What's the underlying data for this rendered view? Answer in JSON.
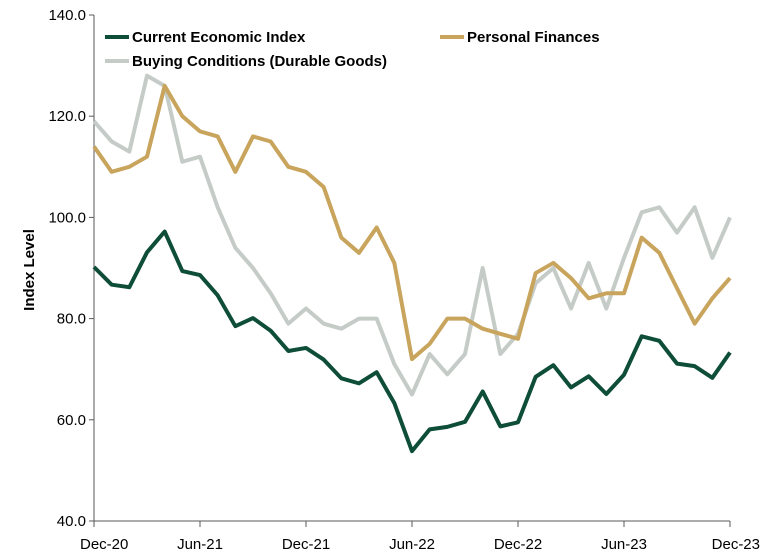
{
  "chart_data": {
    "type": "line",
    "ylabel": "Index Level",
    "ylim": [
      40,
      140
    ],
    "yticks": [
      "40.0",
      "60.0",
      "80.0",
      "100.0",
      "120.0",
      "140.0"
    ],
    "xlim": [
      0,
      36
    ],
    "xticks": [
      {
        "x": 0,
        "label": "Dec-20"
      },
      {
        "x": 6,
        "label": "Jun-21"
      },
      {
        "x": 12,
        "label": "Dec-21"
      },
      {
        "x": 18,
        "label": "Jun-22"
      },
      {
        "x": 24,
        "label": "Dec-22"
      },
      {
        "x": 30,
        "label": "Jun-23"
      },
      {
        "x": 36,
        "label": "Dec-23"
      }
    ],
    "legend_placement": "top",
    "series": [
      {
        "name": "Buying Conditions (Durable Goods)",
        "color": "#c5ccc8",
        "values": [
          119,
          115,
          113,
          128,
          126,
          111,
          112,
          102,
          94,
          90,
          85,
          79,
          82,
          79,
          78,
          80,
          80,
          71,
          65,
          73,
          69,
          73,
          90,
          73,
          77,
          87,
          90,
          82,
          91,
          82,
          92,
          101,
          102,
          97,
          102,
          92,
          100
        ]
      },
      {
        "name": "Personal Finances",
        "color": "#c8a45c",
        "values": [
          114,
          109,
          110,
          112,
          126,
          120,
          117,
          116,
          109,
          116,
          115,
          110,
          109,
          106,
          96,
          93,
          98,
          91,
          72,
          75,
          80,
          80,
          78,
          77,
          76,
          89,
          91,
          88,
          84,
          85,
          85,
          96,
          93,
          86,
          79,
          84,
          88
        ]
      },
      {
        "name": "Current Economic Index",
        "color": "#0e4d38",
        "values": [
          90.2,
          86.7,
          86.2,
          93.1,
          97.2,
          89.4,
          88.6,
          84.6,
          78.5,
          80.1,
          77.6,
          73.6,
          74.2,
          71.9,
          68.2,
          67.2,
          69.4,
          63.3,
          53.8,
          58.1,
          58.6,
          59.6,
          65.6,
          58.7,
          59.5,
          68.5,
          70.8,
          66.4,
          68.6,
          65.1,
          68.9,
          76.5,
          75.6,
          71.1,
          70.6,
          68.3,
          73.3
        ]
      }
    ],
    "legend": [
      {
        "name": "Current Economic Index",
        "color": "#0e4d38"
      },
      {
        "name": "Personal Finances",
        "color": "#c8a45c"
      },
      {
        "name": "Buying Conditions (Durable Goods)",
        "color": "#c5ccc8"
      }
    ]
  }
}
